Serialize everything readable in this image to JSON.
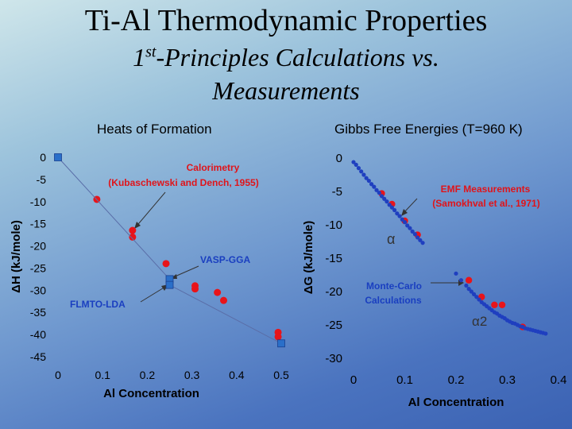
{
  "slide": {
    "title": "Ti-Al Thermodynamic Properties",
    "subtitle_prefix": "1",
    "subtitle_sup": "st",
    "subtitle_rest": "-Principles Calculations vs.",
    "subtitle_line2": "Measurements"
  },
  "colors": {
    "calc": "#1f3fbf",
    "meas": "#e8141a",
    "annotation_red": "#e0141a",
    "annotation_blue": "#1a3fc0"
  },
  "chart_data": [
    {
      "type": "scatter",
      "title": "Heats of Formation",
      "xlabel": "Al Concentration",
      "ylabel": "ΔH (kJ/mole)",
      "xlim": [
        0,
        0.5
      ],
      "ylim": [
        -45,
        0
      ],
      "xticks": [
        "0",
        "0.1",
        "0.2",
        "0.3",
        "0.4",
        "0.5"
      ],
      "yticks": [
        "0",
        "-5",
        "-10",
        "-15",
        "-20",
        "-25",
        "-30",
        "-35",
        "-40",
        "-45"
      ],
      "grid": false,
      "annotations": {
        "calorimetry_1": "Calorimetry",
        "calorimetry_2": "(Kubaschewski and Dench, 1955)",
        "vasp": "VASP-GGA",
        "flmto": "FLMTO-LDA"
      },
      "series": [
        {
          "name": "Calorimetry",
          "marker": "circle",
          "x": [
            0.087,
            0.167,
            0.167,
            0.242,
            0.307,
            0.307,
            0.357,
            0.371,
            0.493,
            0.493
          ],
          "y": [
            -9.5,
            -16.5,
            -18,
            -24,
            -29,
            -29.7,
            -30.5,
            -32.3,
            -39.5,
            -40.5
          ]
        },
        {
          "name": "VASP-GGA",
          "marker": "square",
          "x": [
            0,
            0.25,
            0.25,
            0.5
          ],
          "y": [
            0,
            -27.5,
            -28.8,
            -42
          ]
        },
        {
          "name": "FLMTO-LDA",
          "marker": "square",
          "x": [
            0,
            0.25,
            0.25,
            0.5
          ],
          "y": [
            0,
            -27.5,
            -28.8,
            -42
          ]
        }
      ]
    },
    {
      "type": "scatter",
      "title": "Gibbs Free Energies (T=960 K)",
      "xlabel": "Al Concentration",
      "ylabel": "ΔG (kJ/mole)",
      "xlim": [
        0,
        0.4
      ],
      "ylim": [
        -30,
        0
      ],
      "xticks": [
        "0",
        "0.1",
        "0.2",
        "0.3",
        "0.4"
      ],
      "yticks": [
        "0",
        "-5",
        "-10",
        "-15",
        "-20",
        "-25",
        "-30"
      ],
      "grid": false,
      "annotations": {
        "emf_1": "EMF Measurements",
        "emf_2": "(Samokhval et al., 1971)",
        "mc_1": "Monte-Carlo",
        "mc_2": "Calculations",
        "alpha": "α",
        "alpha2": "α2"
      },
      "series": [
        {
          "name": "EMF Measurements",
          "marker": "circle",
          "x": [
            0.055,
            0.075,
            0.1,
            0.125,
            0.225,
            0.25,
            0.275,
            0.29,
            0.33
          ],
          "y": [
            -5.3,
            -6.9,
            -9.4,
            -11.5,
            -18.3,
            -20.8,
            -22,
            -22,
            -25.3
          ]
        },
        {
          "name": "Monte-Carlo Calculations (α)",
          "marker": "circle",
          "x": [
            0.0,
            0.005,
            0.01,
            0.015,
            0.02,
            0.025,
            0.03,
            0.035,
            0.04,
            0.045,
            0.05,
            0.055,
            0.06,
            0.065,
            0.07,
            0.075,
            0.08,
            0.085,
            0.09,
            0.095,
            0.1,
            0.105,
            0.11,
            0.115,
            0.12,
            0.125,
            0.13,
            0.135
          ],
          "y": [
            -0.6,
            -1.0,
            -1.5,
            -2.0,
            -2.5,
            -3.0,
            -3.4,
            -3.9,
            -4.3,
            -4.8,
            -5.2,
            -5.7,
            -6.1,
            -6.5,
            -7.0,
            -7.4,
            -7.8,
            -8.3,
            -8.7,
            -9.2,
            -9.6,
            -10.1,
            -10.5,
            -11.0,
            -11.4,
            -11.9,
            -12.3,
            -12.7
          ]
        },
        {
          "name": "Monte-Carlo Calculations (α2)",
          "marker": "circle",
          "x": [
            0.2,
            0.21,
            0.22,
            0.225,
            0.23,
            0.235,
            0.24,
            0.245,
            0.25,
            0.255,
            0.26,
            0.265,
            0.27,
            0.275,
            0.28,
            0.285,
            0.29,
            0.295,
            0.3,
            0.305,
            0.31,
            0.315,
            0.32,
            0.325,
            0.33,
            0.335,
            0.34,
            0.345,
            0.35,
            0.355,
            0.36,
            0.365,
            0.37,
            0.375
          ],
          "y": [
            -17.3,
            -18.3,
            -19.1,
            -19.6,
            -20.0,
            -20.4,
            -20.8,
            -21.2,
            -21.6,
            -21.9,
            -22.2,
            -22.5,
            -22.8,
            -23.1,
            -23.3,
            -23.6,
            -23.8,
            -24.0,
            -24.3,
            -24.5,
            -24.7,
            -24.8,
            -25.0,
            -25.2,
            -25.3,
            -25.5,
            -25.6,
            -25.7,
            -25.8,
            -25.9,
            -26.0,
            -26.1,
            -26.2,
            -26.3
          ]
        }
      ]
    }
  ]
}
